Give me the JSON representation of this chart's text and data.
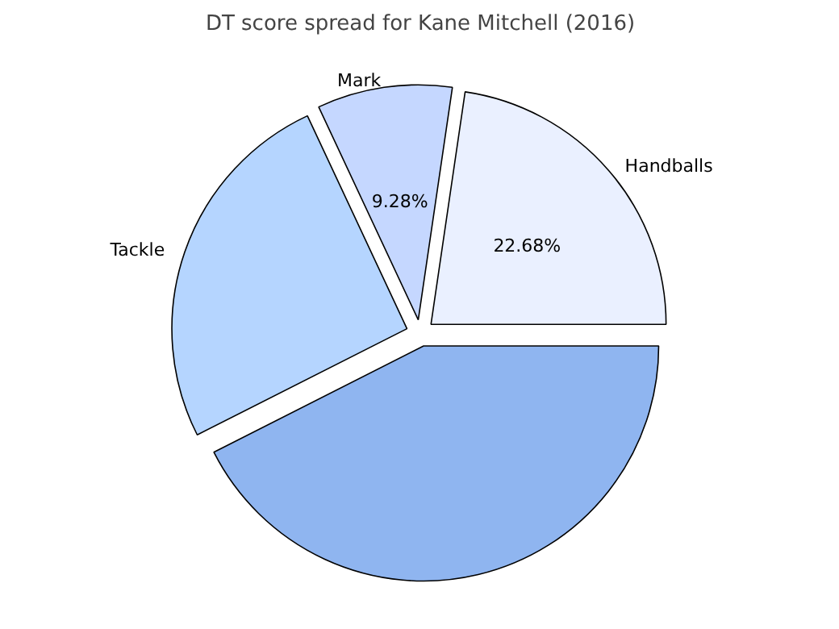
{
  "chart_data": {
    "type": "pie",
    "title": "DT score spread for Kane Mitchell (2016)",
    "categories": [
      "Handballs",
      "Mark",
      "Tackle",
      null
    ],
    "values": [
      22.68,
      9.28,
      25.5,
      42.54
    ],
    "value_labels": [
      "22.68%",
      "9.28%",
      null,
      null
    ],
    "colors": [
      "#eaf0ff",
      "#c5d7ff",
      "#b5d5ff",
      "#8fb5f0"
    ]
  }
}
